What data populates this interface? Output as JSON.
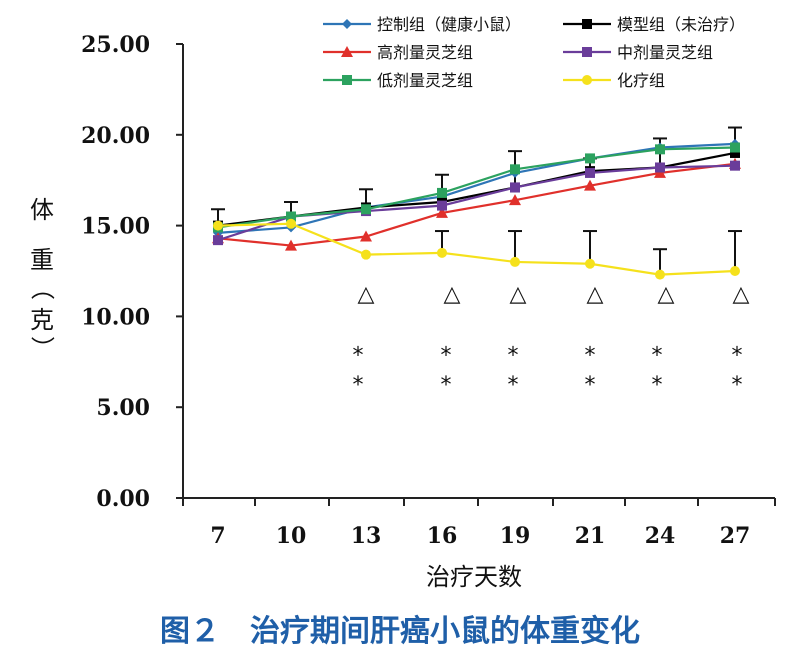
{
  "caption": "图２　治疗期间肝癌小鼠的体重变化",
  "chart_data": {
    "type": "line",
    "title": "",
    "xlabel": "治疗天数",
    "ylabel": "体重（克）",
    "x": [
      "7",
      "10",
      "13",
      "16",
      "19",
      "21",
      "24",
      "27"
    ],
    "yticks": [
      "0.00",
      "5.00",
      "10.00",
      "15.00",
      "20.00",
      "25.00"
    ],
    "ylim": [
      0,
      25
    ],
    "legend_position": "top-right",
    "series": [
      {
        "name": "控制组（健康小鼠）",
        "color": "#2e75b6",
        "marker": "diamond",
        "values": [
          14.6,
          14.9,
          16.0,
          16.6,
          17.9,
          18.7,
          19.3,
          19.5
        ],
        "errors": [
          0,
          0,
          0,
          0,
          0,
          0,
          0,
          0
        ]
      },
      {
        "name": "模型组（未治疗）",
        "color": "#000000",
        "marker": "square",
        "values": [
          15.0,
          15.5,
          16.0,
          16.3,
          17.1,
          18.0,
          18.2,
          19.0
        ],
        "errors": [
          0.9,
          0.8,
          1.0,
          1.5,
          2.0,
          0.7,
          1.6,
          1.4
        ]
      },
      {
        "name": "高剂量灵芝组",
        "color": "#e0302b",
        "marker": "triangle",
        "values": [
          14.3,
          13.9,
          14.4,
          15.7,
          16.4,
          17.2,
          17.9,
          18.4
        ],
        "errors": [
          0,
          0,
          0,
          0,
          0,
          0,
          0,
          0
        ]
      },
      {
        "name": "中剂量灵芝组",
        "color": "#6a3d9a",
        "marker": "square",
        "values": [
          14.2,
          15.5,
          15.8,
          16.1,
          17.1,
          17.9,
          18.2,
          18.3
        ],
        "errors": [
          0,
          0,
          0,
          0,
          0,
          0,
          0,
          0
        ]
      },
      {
        "name": "低剂量灵芝组",
        "color": "#2ca25f",
        "marker": "square",
        "values": [
          14.9,
          15.5,
          15.9,
          16.8,
          18.1,
          18.7,
          19.2,
          19.3
        ],
        "errors": [
          0,
          0,
          0,
          0,
          0,
          0,
          0,
          0
        ]
      },
      {
        "name": "化疗组",
        "color": "#f5e11c",
        "marker": "circle",
        "values": [
          15.0,
          15.1,
          13.4,
          13.5,
          13.0,
          12.9,
          12.3,
          12.5
        ],
        "errors": [
          0,
          0,
          0,
          1.2,
          1.7,
          1.8,
          1.4,
          2.2
        ]
      }
    ],
    "annotations": {
      "triangle": "△",
      "triangle_y": 11.3,
      "triangle_x_index": [
        2,
        3,
        4,
        5,
        6,
        7
      ],
      "star": "*",
      "star_rows_y": [
        8.0,
        6.4
      ],
      "star_x_index": [
        2,
        3,
        4,
        5,
        6,
        7
      ]
    }
  }
}
